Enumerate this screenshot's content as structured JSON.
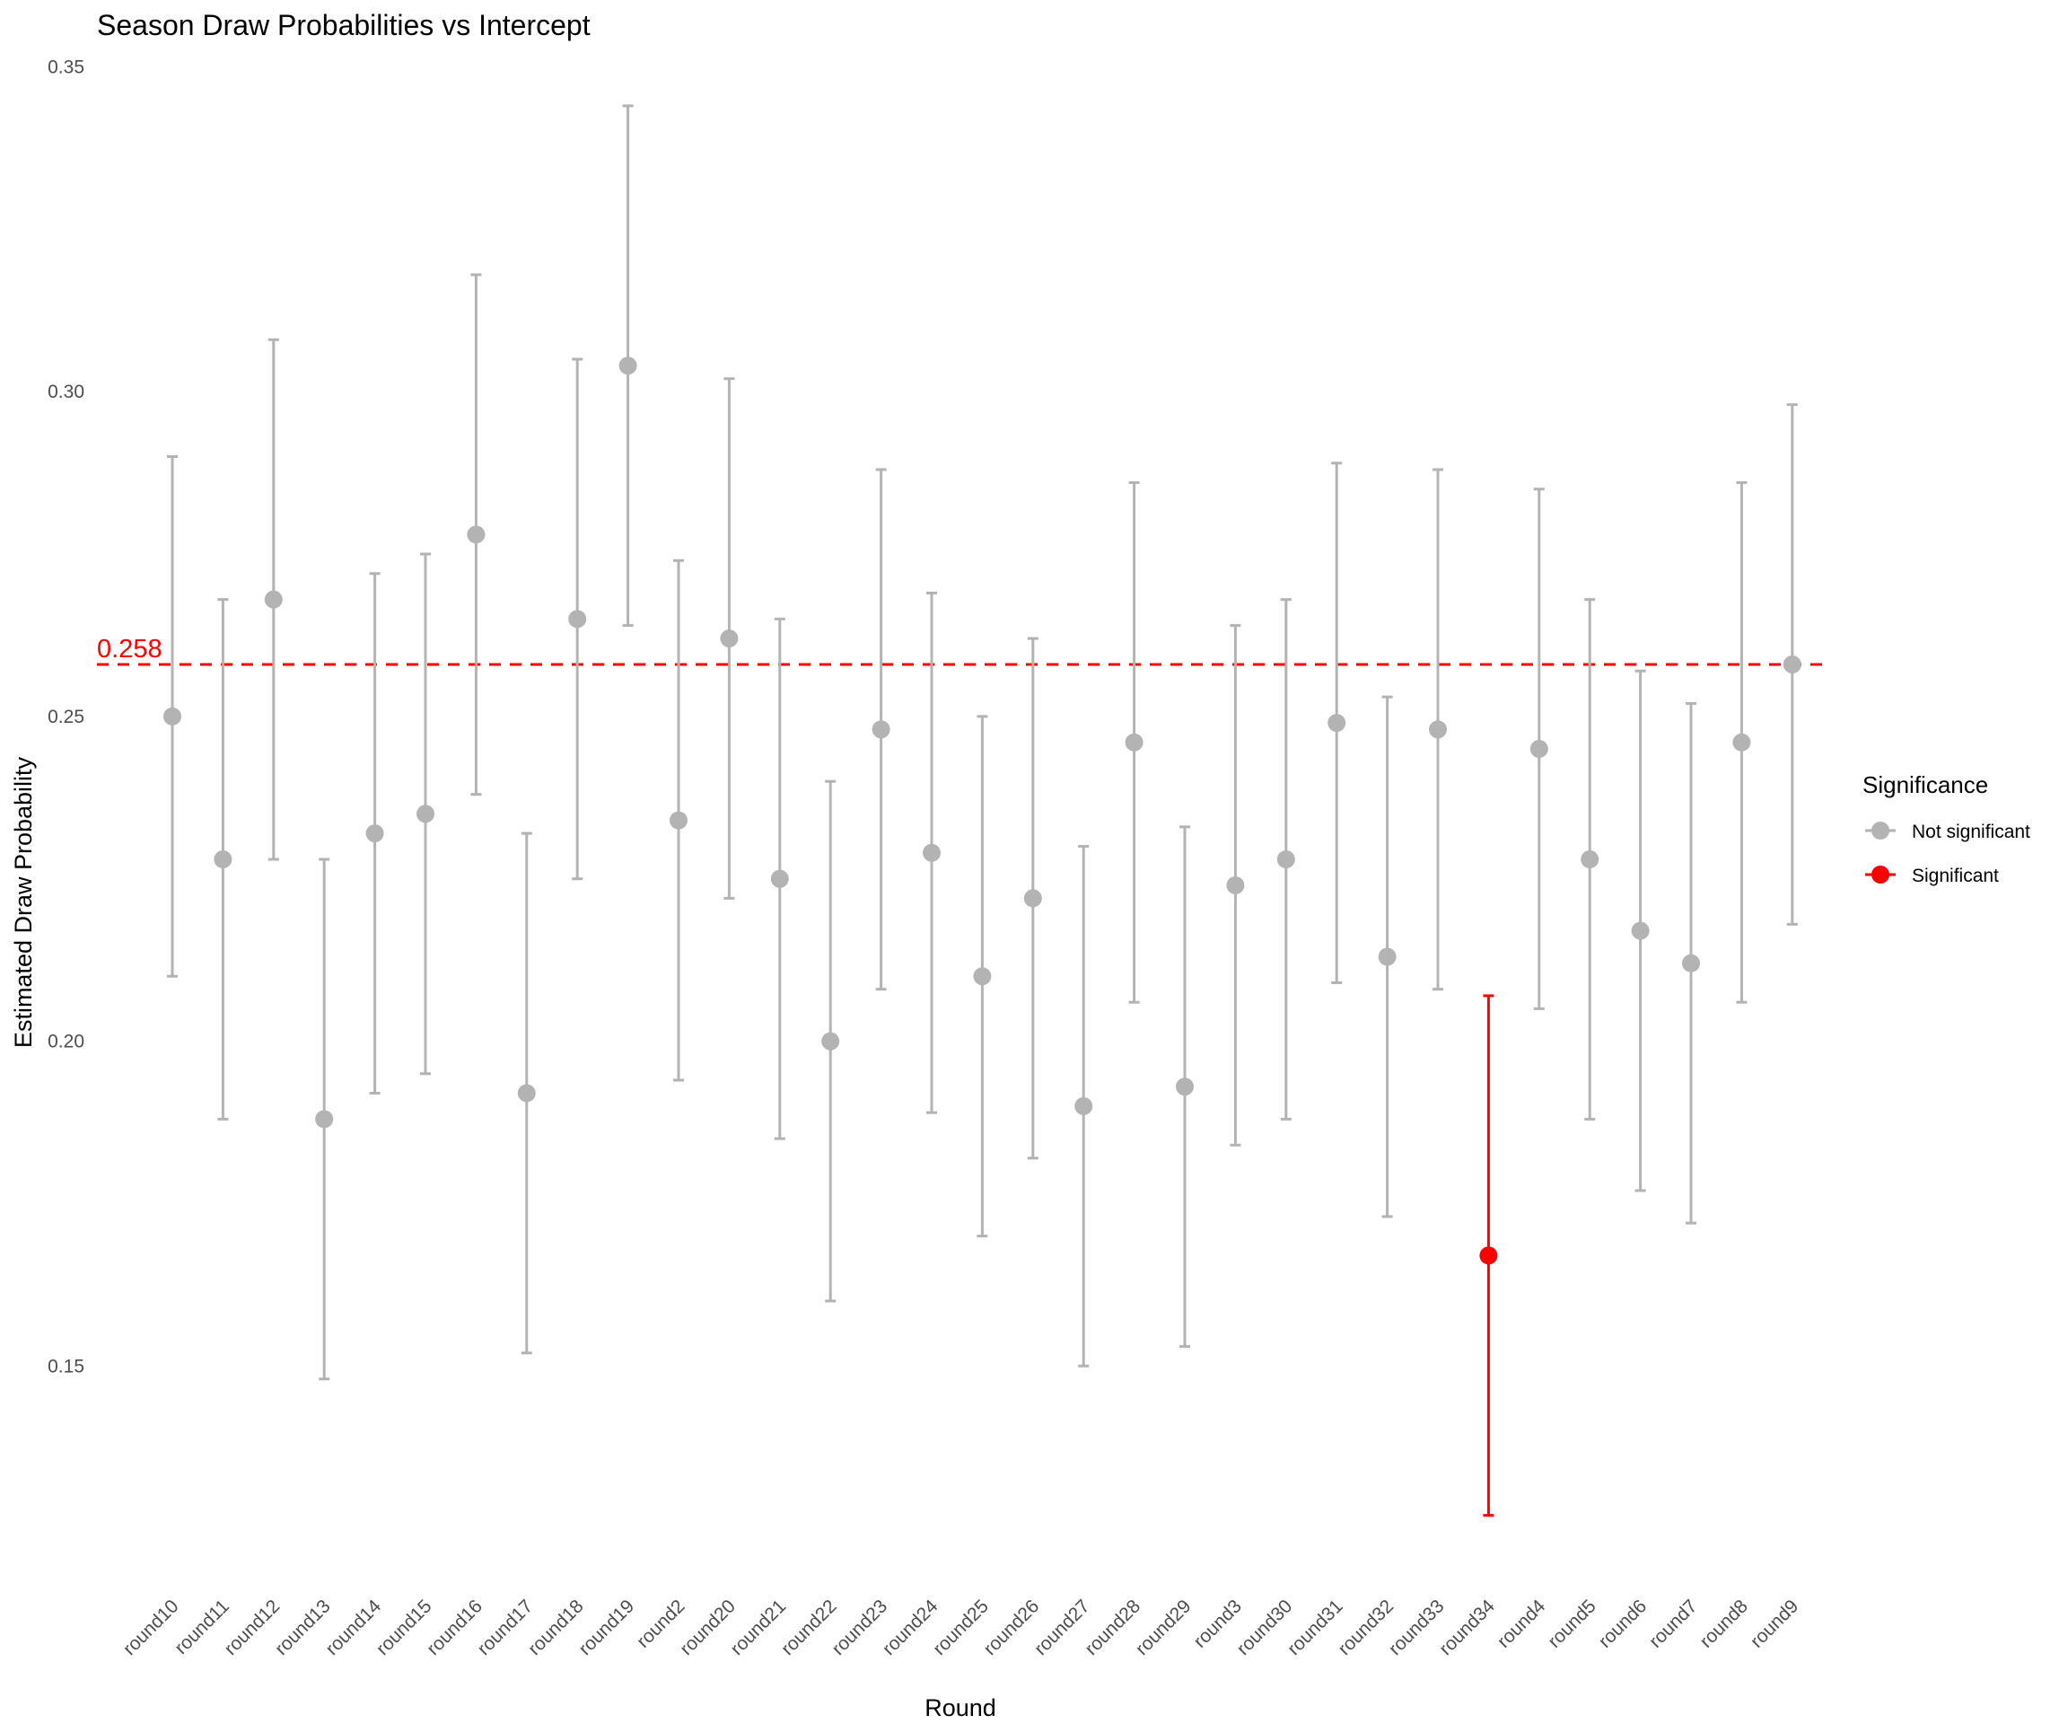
{
  "chart_data": {
    "type": "scatter",
    "title": "Season Draw Probabilities vs Intercept",
    "xlabel": "Round",
    "ylabel": "Estimated Draw Probability",
    "ylim": [
      0.117,
      0.352
    ],
    "y_ticks": [
      0.15,
      0.2,
      0.25,
      0.3,
      0.35
    ],
    "y_tick_labels": [
      "0.15",
      "0.20",
      "0.25",
      "0.30",
      "0.35"
    ],
    "grid": false,
    "reference_line": {
      "value": 0.258,
      "label": "0.258",
      "color": "#FF0000",
      "style": "dashed"
    },
    "legend": {
      "title": "Significance",
      "position": "right",
      "entries": [
        {
          "label": "Not significant",
          "color": "#B3B3B3"
        },
        {
          "label": "Significant",
          "color": "#FF0000"
        }
      ]
    },
    "categories": [
      "round10",
      "round11",
      "round12",
      "round13",
      "round14",
      "round15",
      "round16",
      "round17",
      "round18",
      "round19",
      "round2",
      "round20",
      "round21",
      "round22",
      "round23",
      "round24",
      "round25",
      "round26",
      "round27",
      "round28",
      "round29",
      "round3",
      "round30",
      "round31",
      "round32",
      "round33",
      "round34",
      "round4",
      "round5",
      "round6",
      "round7",
      "round8",
      "round9"
    ],
    "points": [
      {
        "round": "round10",
        "estimate": 0.25,
        "lower": 0.21,
        "upper": 0.29,
        "significant": false
      },
      {
        "round": "round11",
        "estimate": 0.228,
        "lower": 0.188,
        "upper": 0.268,
        "significant": false
      },
      {
        "round": "round12",
        "estimate": 0.268,
        "lower": 0.228,
        "upper": 0.308,
        "significant": false
      },
      {
        "round": "round13",
        "estimate": 0.188,
        "lower": 0.148,
        "upper": 0.228,
        "significant": false
      },
      {
        "round": "round14",
        "estimate": 0.232,
        "lower": 0.192,
        "upper": 0.272,
        "significant": false
      },
      {
        "round": "round15",
        "estimate": 0.235,
        "lower": 0.195,
        "upper": 0.275,
        "significant": false
      },
      {
        "round": "round16",
        "estimate": 0.278,
        "lower": 0.238,
        "upper": 0.318,
        "significant": false
      },
      {
        "round": "round17",
        "estimate": 0.192,
        "lower": 0.152,
        "upper": 0.232,
        "significant": false
      },
      {
        "round": "round18",
        "estimate": 0.265,
        "lower": 0.225,
        "upper": 0.305,
        "significant": false
      },
      {
        "round": "round19",
        "estimate": 0.304,
        "lower": 0.264,
        "upper": 0.344,
        "significant": false
      },
      {
        "round": "round2",
        "estimate": 0.234,
        "lower": 0.194,
        "upper": 0.274,
        "significant": false
      },
      {
        "round": "round20",
        "estimate": 0.262,
        "lower": 0.222,
        "upper": 0.302,
        "significant": false
      },
      {
        "round": "round21",
        "estimate": 0.225,
        "lower": 0.185,
        "upper": 0.265,
        "significant": false
      },
      {
        "round": "round22",
        "estimate": 0.2,
        "lower": 0.16,
        "upper": 0.24,
        "significant": false
      },
      {
        "round": "round23",
        "estimate": 0.248,
        "lower": 0.208,
        "upper": 0.288,
        "significant": false
      },
      {
        "round": "round24",
        "estimate": 0.229,
        "lower": 0.189,
        "upper": 0.269,
        "significant": false
      },
      {
        "round": "round25",
        "estimate": 0.21,
        "lower": 0.17,
        "upper": 0.25,
        "significant": false
      },
      {
        "round": "round26",
        "estimate": 0.222,
        "lower": 0.182,
        "upper": 0.262,
        "significant": false
      },
      {
        "round": "round27",
        "estimate": 0.19,
        "lower": 0.15,
        "upper": 0.23,
        "significant": false
      },
      {
        "round": "round28",
        "estimate": 0.246,
        "lower": 0.206,
        "upper": 0.286,
        "significant": false
      },
      {
        "round": "round29",
        "estimate": 0.193,
        "lower": 0.153,
        "upper": 0.233,
        "significant": false
      },
      {
        "round": "round3",
        "estimate": 0.224,
        "lower": 0.184,
        "upper": 0.264,
        "significant": false
      },
      {
        "round": "round30",
        "estimate": 0.228,
        "lower": 0.188,
        "upper": 0.268,
        "significant": false
      },
      {
        "round": "round31",
        "estimate": 0.249,
        "lower": 0.209,
        "upper": 0.289,
        "significant": false
      },
      {
        "round": "round32",
        "estimate": 0.213,
        "lower": 0.173,
        "upper": 0.253,
        "significant": false
      },
      {
        "round": "round33",
        "estimate": 0.248,
        "lower": 0.208,
        "upper": 0.288,
        "significant": false
      },
      {
        "round": "round34",
        "estimate": 0.167,
        "lower": 0.127,
        "upper": 0.207,
        "significant": true
      },
      {
        "round": "round4",
        "estimate": 0.245,
        "lower": 0.205,
        "upper": 0.285,
        "significant": false
      },
      {
        "round": "round5",
        "estimate": 0.228,
        "lower": 0.188,
        "upper": 0.268,
        "significant": false
      },
      {
        "round": "round6",
        "estimate": 0.217,
        "lower": 0.177,
        "upper": 0.257,
        "significant": false
      },
      {
        "round": "round7",
        "estimate": 0.212,
        "lower": 0.172,
        "upper": 0.252,
        "significant": false
      },
      {
        "round": "round8",
        "estimate": 0.246,
        "lower": 0.206,
        "upper": 0.286,
        "significant": false
      },
      {
        "round": "round9",
        "estimate": 0.258,
        "lower": 0.218,
        "upper": 0.298,
        "significant": false
      }
    ]
  }
}
